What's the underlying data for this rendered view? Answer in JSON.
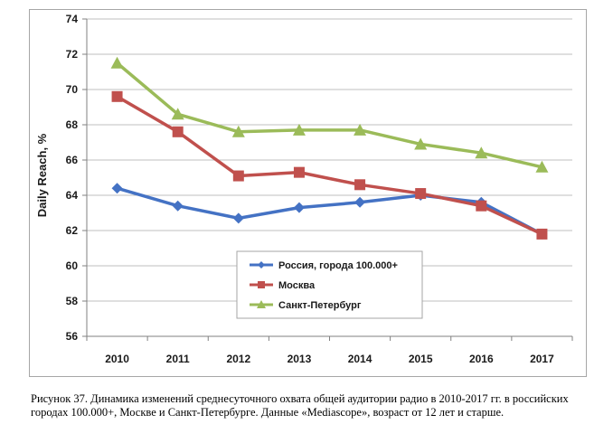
{
  "chart_data": {
    "type": "line",
    "title": "",
    "xlabel": "",
    "ylabel": "Daily Reach, %",
    "ylim": [
      56,
      74
    ],
    "yticks": [
      "56",
      "58",
      "60",
      "62",
      "64",
      "66",
      "68",
      "70",
      "72",
      "74"
    ],
    "x": [
      "2010",
      "2011",
      "2012",
      "2013",
      "2014",
      "2015",
      "2016",
      "2017"
    ],
    "grid": true,
    "legend_position": "bottom-center",
    "series": [
      {
        "name": "Россия, города 100.000+",
        "color": "#4472c4",
        "marker": "diamond",
        "values": [
          64.4,
          63.4,
          62.7,
          63.3,
          63.6,
          64.0,
          63.6,
          61.8
        ]
      },
      {
        "name": "Москва",
        "color": "#c0504d",
        "marker": "square",
        "values": [
          69.6,
          67.6,
          65.1,
          65.3,
          64.6,
          64.1,
          63.4,
          61.8
        ]
      },
      {
        "name": "Санкт-Петербург",
        "color": "#9bbb59",
        "marker": "triangle",
        "values": [
          71.5,
          68.6,
          67.6,
          67.7,
          67.7,
          66.9,
          66.4,
          65.6
        ]
      }
    ]
  },
  "caption": "Рисунок 37. Динамика изменений среднесуточного охвата общей аудитории радио в 2010-2017 гг. в российских городах 100.000+, Москве и Санкт-Петербурге. Данные «Mediascope», возраст от 12 лет и старше."
}
